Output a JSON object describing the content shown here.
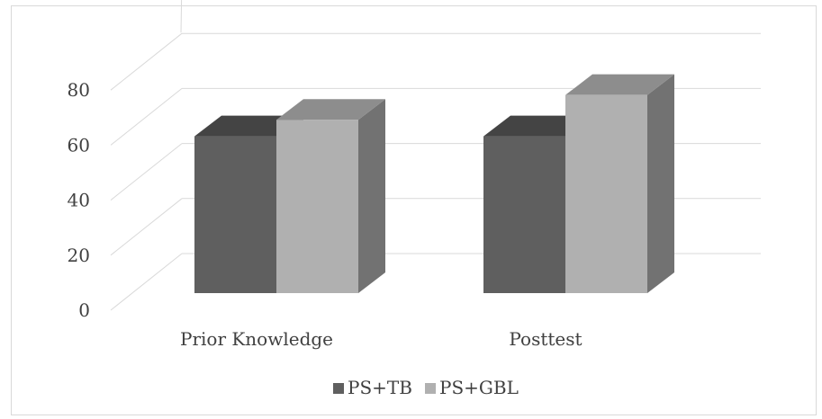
{
  "chart_data": {
    "type": "bar",
    "title": "",
    "xlabel": "",
    "ylabel": "",
    "categories": [
      "Prior Knowledge",
      "Posttest"
    ],
    "series": [
      {
        "name": "PS+TB",
        "values": [
          57,
          57
        ],
        "color": "#5f5f5f"
      },
      {
        "name": "PS+GBL",
        "values": [
          63,
          72
        ],
        "color": "#b0b0b0"
      }
    ],
    "ylim": [
      0,
      80
    ],
    "y_ticks": [
      "0",
      "20",
      "40",
      "60",
      "80"
    ],
    "grid": true,
    "legend_position": "bottom",
    "three_d": true
  }
}
